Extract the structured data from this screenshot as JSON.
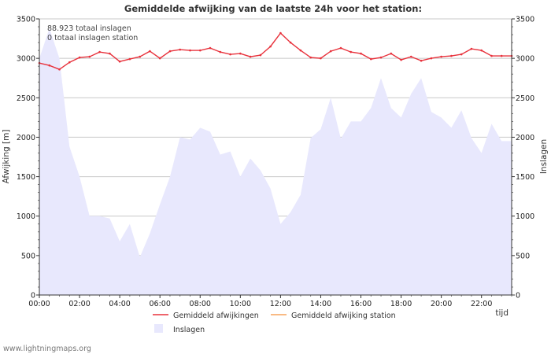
{
  "chart_data": {
    "type": "line",
    "title": "Gemiddelde afwijking van de laatste 24h voor het station:",
    "ylabel_left": "Afwijking  [m]",
    "ylabel_right": "Inslagen",
    "xlabel": "tijd",
    "ylim": [
      0,
      3500
    ],
    "yticks": [
      0,
      500,
      1000,
      1500,
      2000,
      2500,
      3000,
      3500
    ],
    "ytick_labels": [
      "0",
      "500",
      "1000",
      "1500",
      "2000",
      "2500",
      "3000",
      "3500"
    ],
    "xlim_hours": [
      0,
      23.5
    ],
    "xticks_hours": [
      0,
      2,
      4,
      6,
      8,
      10,
      12,
      14,
      16,
      18,
      20,
      22
    ],
    "xtick_labels": [
      "00:00",
      "02:00",
      "04:00",
      "06:00",
      "08:00",
      "10:00",
      "12:00",
      "14:00",
      "16:00",
      "18:00",
      "20:00",
      "22:00"
    ],
    "annotations": [
      "88.923 totaal inslagen",
      "0 totaal inslagen station"
    ],
    "hours": [
      0,
      0.5,
      1,
      1.5,
      2,
      2.5,
      3,
      3.5,
      4,
      4.5,
      5,
      5.5,
      6,
      6.5,
      7,
      7.5,
      8,
      8.5,
      9,
      9.5,
      10,
      10.5,
      11,
      11.5,
      12,
      12.5,
      13,
      13.5,
      14,
      14.5,
      15,
      15.5,
      16,
      16.5,
      17,
      17.5,
      18,
      18.5,
      19,
      19.5,
      20,
      20.5,
      21,
      21.5,
      22,
      22.5,
      23,
      23.5
    ],
    "series": [
      {
        "name": "Gemiddeld afwijkingen",
        "kind": "line",
        "color": "#e8323c",
        "values": [
          2940,
          2910,
          2860,
          2950,
          3010,
          3020,
          3080,
          3060,
          2960,
          2990,
          3020,
          3090,
          3000,
          3090,
          3110,
          3100,
          3100,
          3130,
          3080,
          3050,
          3060,
          3020,
          3040,
          3150,
          3320,
          3200,
          3100,
          3010,
          3000,
          3090,
          3130,
          3080,
          3060,
          2990,
          3010,
          3060,
          2980,
          3020,
          2970,
          3000,
          3020,
          3030,
          3050,
          3120,
          3100,
          3030,
          3030,
          3030
        ]
      },
      {
        "name": "Gemiddeld afwijking station",
        "kind": "line",
        "color": "#f7a35c",
        "values": []
      },
      {
        "name": "Inslagen",
        "kind": "area",
        "color": "#e8e8fd",
        "values": [
          3000,
          3380,
          3000,
          1880,
          1500,
          1000,
          1000,
          970,
          680,
          900,
          480,
          780,
          1150,
          1500,
          2000,
          1970,
          2120,
          2070,
          1780,
          1820,
          1500,
          1730,
          1580,
          1350,
          900,
          1050,
          1270,
          1990,
          2100,
          2500,
          1980,
          2200,
          2200,
          2370,
          2750,
          2370,
          2250,
          2550,
          2750,
          2320,
          2250,
          2120,
          2340,
          1990,
          1800,
          2170,
          1950,
          1950
        ]
      }
    ]
  },
  "footer": {
    "source": "www.lightningmaps.org"
  }
}
